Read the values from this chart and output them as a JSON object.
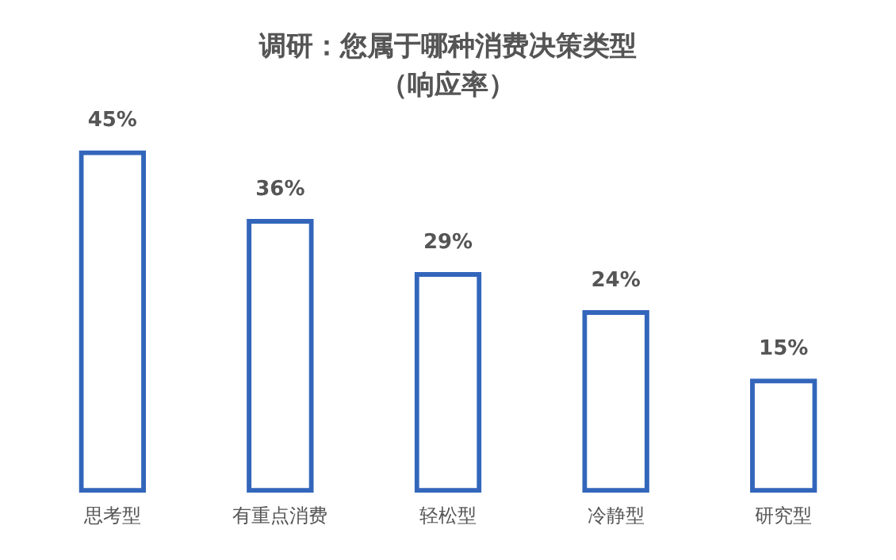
{
  "chart_data": {
    "type": "bar",
    "title": "调研：您属于哪种消费决策类型",
    "subtitle": "（响应率）",
    "categories": [
      "思考型",
      "有重点消费",
      "轻松型",
      "冷静型",
      "研究型"
    ],
    "values": [
      45,
      36,
      29,
      24,
      15
    ],
    "value_labels": [
      "45%",
      "36%",
      "29%",
      "24%",
      "15%"
    ],
    "color": "#3366bb",
    "grid": false,
    "legend": false
  }
}
